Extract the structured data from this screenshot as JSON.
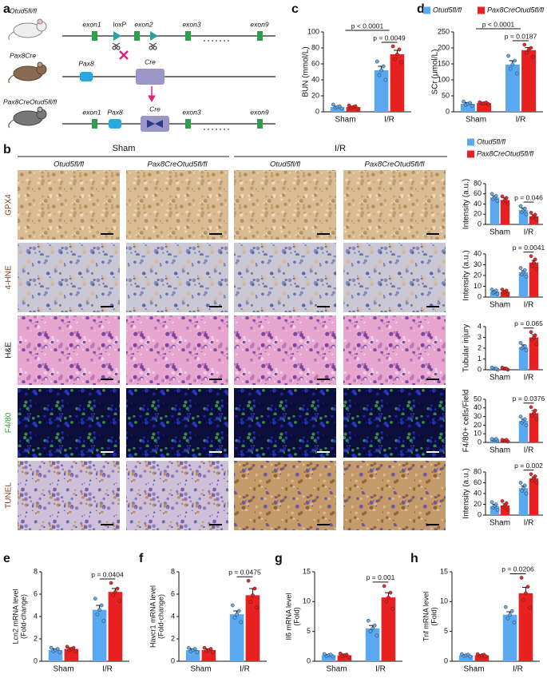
{
  "panel_labels": [
    "a",
    "b",
    "c",
    "d",
    "e",
    "f",
    "g",
    "h"
  ],
  "diagram": {
    "lines": [
      {
        "genotype": "Otud5fl/fl",
        "labels": [
          "exon1",
          "loxP",
          "exon2",
          "exon3",
          "exon9"
        ]
      },
      {
        "genotype": "Pax8Cre",
        "labels": [
          "Pax8",
          "Cre"
        ]
      },
      {
        "genotype": "Pax8CreOtud5fl/fl",
        "labels": [
          "exon1",
          "Pax8",
          "Cre",
          "exon3",
          "exon9"
        ]
      }
    ]
  },
  "histology": {
    "groups": [
      "Sham",
      "I/R"
    ],
    "columns": [
      "Otud5fl/fl",
      "Pax8CreOtud5fl/fl",
      "Otud5fl/fl",
      "Pax8CreOtud5fl/fl"
    ],
    "rows": [
      "GPX4",
      "4-HNE",
      "H&E",
      "F4/80",
      "TUNEL"
    ]
  },
  "chart_data": [
    {
      "type": "bar",
      "ylabel": "BUN (mmol/L)",
      "categories": [
        "Sham",
        "I/R"
      ],
      "ylim": [
        0,
        100
      ],
      "yticks": [
        0,
        20,
        40,
        60,
        80,
        100
      ],
      "pvalues": [
        "p < 0.0001",
        "p = 0.0049"
      ],
      "series": [
        {
          "color": "#5aa9f0",
          "values": [
            6,
            52
          ],
          "errors": [
            1,
            5
          ],
          "points": [
            [
              4,
              5,
              6,
              7,
              9
            ],
            [
              40,
              46,
              52,
              57,
              63
            ]
          ]
        },
        {
          "color": "#e8201f",
          "values": [
            6,
            72
          ],
          "errors": [
            1,
            5
          ],
          "points": [
            [
              4,
              5,
              6,
              7,
              8
            ],
            [
              62,
              66,
              72,
              78,
              82
            ]
          ]
        }
      ]
    },
    {
      "type": "bar",
      "ylabel": "SCr (μmol/L)",
      "categories": [
        "Sham",
        "I/R"
      ],
      "ylim": [
        0,
        250
      ],
      "yticks": [
        0,
        50,
        100,
        150,
        200,
        250
      ],
      "pvalues": [
        "p < 0.0001",
        "p = 0.0187"
      ],
      "legend": "top",
      "series": [
        {
          "name": "Otud5fl/fl",
          "color": "#5aa9f0",
          "values": [
            25,
            148
          ],
          "errors": [
            4,
            12
          ],
          "points": [
            [
              18,
              22,
              25,
              28,
              32
            ],
            [
              120,
              135,
              148,
              160,
              175
            ]
          ]
        },
        {
          "name": "Pax8CreOtud5fl/fl",
          "color": "#e8201f",
          "values": [
            27,
            193
          ],
          "errors": [
            2,
            8
          ],
          "points": [
            [
              24,
              26,
              27,
              29,
              30
            ],
            [
              172,
              185,
              195,
              200,
              210
            ]
          ]
        }
      ]
    },
    {
      "type": "bar",
      "ylabel": "Intensity (a.u.)",
      "categories": [
        "Sham",
        "I/R"
      ],
      "ylim": [
        0,
        80
      ],
      "yticks": [
        0,
        20,
        40,
        60,
        80
      ],
      "pvalues": [
        "p = 0.046"
      ],
      "legend": "top",
      "series": [
        {
          "name": "Otud5fl/fl",
          "color": "#5aa9f0",
          "values": [
            53,
            28
          ],
          "errors": [
            3,
            4
          ],
          "points": [
            [
              46,
              50,
              53,
              56,
              60
            ],
            [
              20,
              24,
              28,
              31,
              36
            ]
          ]
        },
        {
          "name": "Pax8CreOtud5fl/fl",
          "color": "#e8201f",
          "values": [
            48,
            16
          ],
          "errors": [
            4,
            3
          ],
          "points": [
            [
              40,
              44,
              48,
              52,
              55
            ],
            [
              10,
              13,
              16,
              19,
              23
            ]
          ]
        }
      ]
    },
    {
      "type": "bar",
      "ylabel": "Intensity (a.u.)",
      "categories": [
        "Sham",
        "I/R"
      ],
      "ylim": [
        0,
        40
      ],
      "yticks": [
        0,
        10,
        20,
        30,
        40
      ],
      "pvalues": [
        "p = 0.0041"
      ],
      "series": [
        {
          "color": "#5aa9f0",
          "values": [
            5,
            23
          ],
          "errors": [
            1,
            1.5
          ],
          "points": [
            [
              3,
              4,
              5,
              6,
              7
            ],
            [
              19,
              21,
              23,
              25,
              27
            ]
          ]
        },
        {
          "color": "#e8201f",
          "values": [
            5,
            32
          ],
          "errors": [
            1,
            2
          ],
          "points": [
            [
              3,
              4,
              5,
              6,
              7
            ],
            [
              26,
              29,
              32,
              35,
              38
            ]
          ]
        }
      ]
    },
    {
      "type": "bar",
      "ylabel": "Tubular injury",
      "categories": [
        "Sham",
        "I/R"
      ],
      "ylim": [
        0,
        4
      ],
      "yticks": [
        0,
        1,
        2,
        3,
        4
      ],
      "pvalues": [
        "p = 0.065"
      ],
      "series": [
        {
          "color": "#5aa9f0",
          "values": [
            0.1,
            2.1
          ],
          "errors": [
            0.05,
            0.2
          ],
          "points": [
            [
              0,
              0.1,
              0.1,
              0.1,
              0.2
            ],
            [
              1.8,
              2,
              2.1,
              2.2,
              2.5
            ]
          ]
        },
        {
          "color": "#e8201f",
          "values": [
            0.1,
            3
          ],
          "errors": [
            0.05,
            0.25
          ],
          "points": [
            [
              0,
              0.1,
              0.1,
              0.1,
              0.2
            ],
            [
              2.4,
              2.8,
              3,
              3.2,
              3.5
            ]
          ]
        }
      ]
    },
    {
      "type": "bar",
      "ylabel": "F4/80+ cells/Field",
      "categories": [
        "Sham",
        "I/R"
      ],
      "ylim": [
        0,
        50
      ],
      "yticks": [
        0,
        10,
        20,
        30,
        40,
        50
      ],
      "pvalues": [
        "p = 0.0376"
      ],
      "series": [
        {
          "color": "#5aa9f0",
          "values": [
            3,
            25
          ],
          "errors": [
            1,
            2
          ],
          "points": [
            [
              2,
              3,
              3,
              4,
              4
            ],
            [
              20,
              23,
              25,
              27,
              30
            ]
          ]
        },
        {
          "color": "#e8201f",
          "values": [
            2,
            34
          ],
          "errors": [
            0.5,
            3
          ],
          "points": [
            [
              1,
              2,
              2,
              3,
              3
            ],
            [
              27,
              31,
              34,
              37,
              41
            ]
          ]
        }
      ]
    },
    {
      "type": "bar",
      "ylabel": "Intensity (a.u.)",
      "categories": [
        "Sham",
        "I/R"
      ],
      "ylim": [
        0,
        80
      ],
      "yticks": [
        0,
        20,
        40,
        60,
        80
      ],
      "pvalues": [
        "p = 0.002"
      ],
      "series": [
        {
          "color": "#5aa9f0",
          "values": [
            17,
            50
          ],
          "errors": [
            3,
            4
          ],
          "points": [
            [
              10,
              14,
              17,
              20,
              24
            ],
            [
              40,
              45,
              50,
              55,
              60
            ]
          ]
        },
        {
          "color": "#e8201f",
          "values": [
            18,
            68
          ],
          "errors": [
            3,
            3
          ],
          "points": [
            [
              10,
              15,
              18,
              22,
              26
            ],
            [
              60,
              64,
              68,
              72,
              76
            ]
          ]
        }
      ]
    },
    {
      "type": "bar",
      "ylabel": [
        "Lcn2 mRNA level",
        "(Fold-change)"
      ],
      "categories": [
        "Sham",
        "I/R"
      ],
      "ylim": [
        0,
        8
      ],
      "yticks": [
        0,
        2,
        4,
        6,
        8
      ],
      "pvalues": [
        "p = 0.0404"
      ],
      "series": [
        {
          "color": "#5aa9f0",
          "values": [
            1,
            4.6
          ],
          "errors": [
            0.1,
            0.4
          ],
          "points": [
            [
              0.8,
              0.9,
              1,
              1.1,
              1.2
            ],
            [
              3.6,
              4.2,
              4.6,
              5,
              5.6
            ]
          ]
        },
        {
          "color": "#e8201f",
          "values": [
            1.1,
            6.2
          ],
          "errors": [
            0.1,
            0.3
          ],
          "points": [
            [
              0.9,
              1,
              1.1,
              1.2,
              1.3
            ],
            [
              5.4,
              5.9,
              6.2,
              6.5,
              7
            ]
          ]
        }
      ]
    },
    {
      "type": "bar",
      "ylabel": [
        "Havcr1 mRNA level",
        "(Fold-change)"
      ],
      "categories": [
        "Sham",
        "I/R"
      ],
      "ylim": [
        0,
        8
      ],
      "yticks": [
        0,
        2,
        4,
        6,
        8
      ],
      "pvalues": [
        "p = 0.0475"
      ],
      "series": [
        {
          "color": "#5aa9f0",
          "values": [
            1,
            4.2
          ],
          "errors": [
            0.1,
            0.3
          ],
          "points": [
            [
              0.8,
              0.9,
              1,
              1.1,
              1.2
            ],
            [
              3.5,
              3.9,
              4.2,
              4.5,
              5
            ]
          ]
        },
        {
          "color": "#e8201f",
          "values": [
            1,
            5.9
          ],
          "errors": [
            0.1,
            0.6
          ],
          "points": [
            [
              0.8,
              0.9,
              1,
              1.1,
              1.2
            ],
            [
              4.8,
              5.3,
              5.9,
              6.5,
              7.2
            ]
          ]
        }
      ]
    },
    {
      "type": "bar",
      "ylabel": [
        "Il6 mRNA level",
        "(Fold)"
      ],
      "categories": [
        "Sham",
        "I/R"
      ],
      "ylim": [
        0,
        15
      ],
      "yticks": [
        0,
        5,
        10,
        15
      ],
      "pvalues": [
        "p = 0.001"
      ],
      "series": [
        {
          "color": "#5aa9f0",
          "values": [
            1,
            5.5
          ],
          "errors": [
            0.1,
            0.5
          ],
          "points": [
            [
              0.8,
              0.9,
              1,
              1.1,
              1.2
            ],
            [
              4.3,
              5,
              5.5,
              6,
              6.8
            ]
          ]
        },
        {
          "color": "#e8201f",
          "values": [
            1,
            10.7
          ],
          "errors": [
            0.2,
            0.8
          ],
          "points": [
            [
              0.7,
              0.9,
              1,
              1.1,
              1.3
            ],
            [
              8.8,
              10,
              10.7,
              11.5,
              12.6
            ]
          ]
        }
      ]
    },
    {
      "type": "bar",
      "ylabel": [
        "Tnf mRNA level",
        "(Fold)"
      ],
      "categories": [
        "Sham",
        "I/R"
      ],
      "ylim": [
        0,
        15
      ],
      "yticks": [
        0,
        5,
        10,
        15
      ],
      "pvalues": [
        "p = 0.0206"
      ],
      "series": [
        {
          "color": "#5aa9f0",
          "values": [
            1,
            7.8
          ],
          "errors": [
            0.1,
            0.5
          ],
          "points": [
            [
              0.8,
              0.9,
              1,
              1.1,
              1.2
            ],
            [
              6.5,
              7.2,
              7.8,
              8.4,
              9.1
            ]
          ]
        },
        {
          "color": "#e8201f",
          "values": [
            1,
            11.4
          ],
          "errors": [
            0.1,
            1
          ],
          "points": [
            [
              0.8,
              0.9,
              1,
              1.1,
              1.2
            ],
            [
              9,
              10.3,
              11.4,
              12.5,
              14
            ]
          ]
        }
      ]
    }
  ]
}
